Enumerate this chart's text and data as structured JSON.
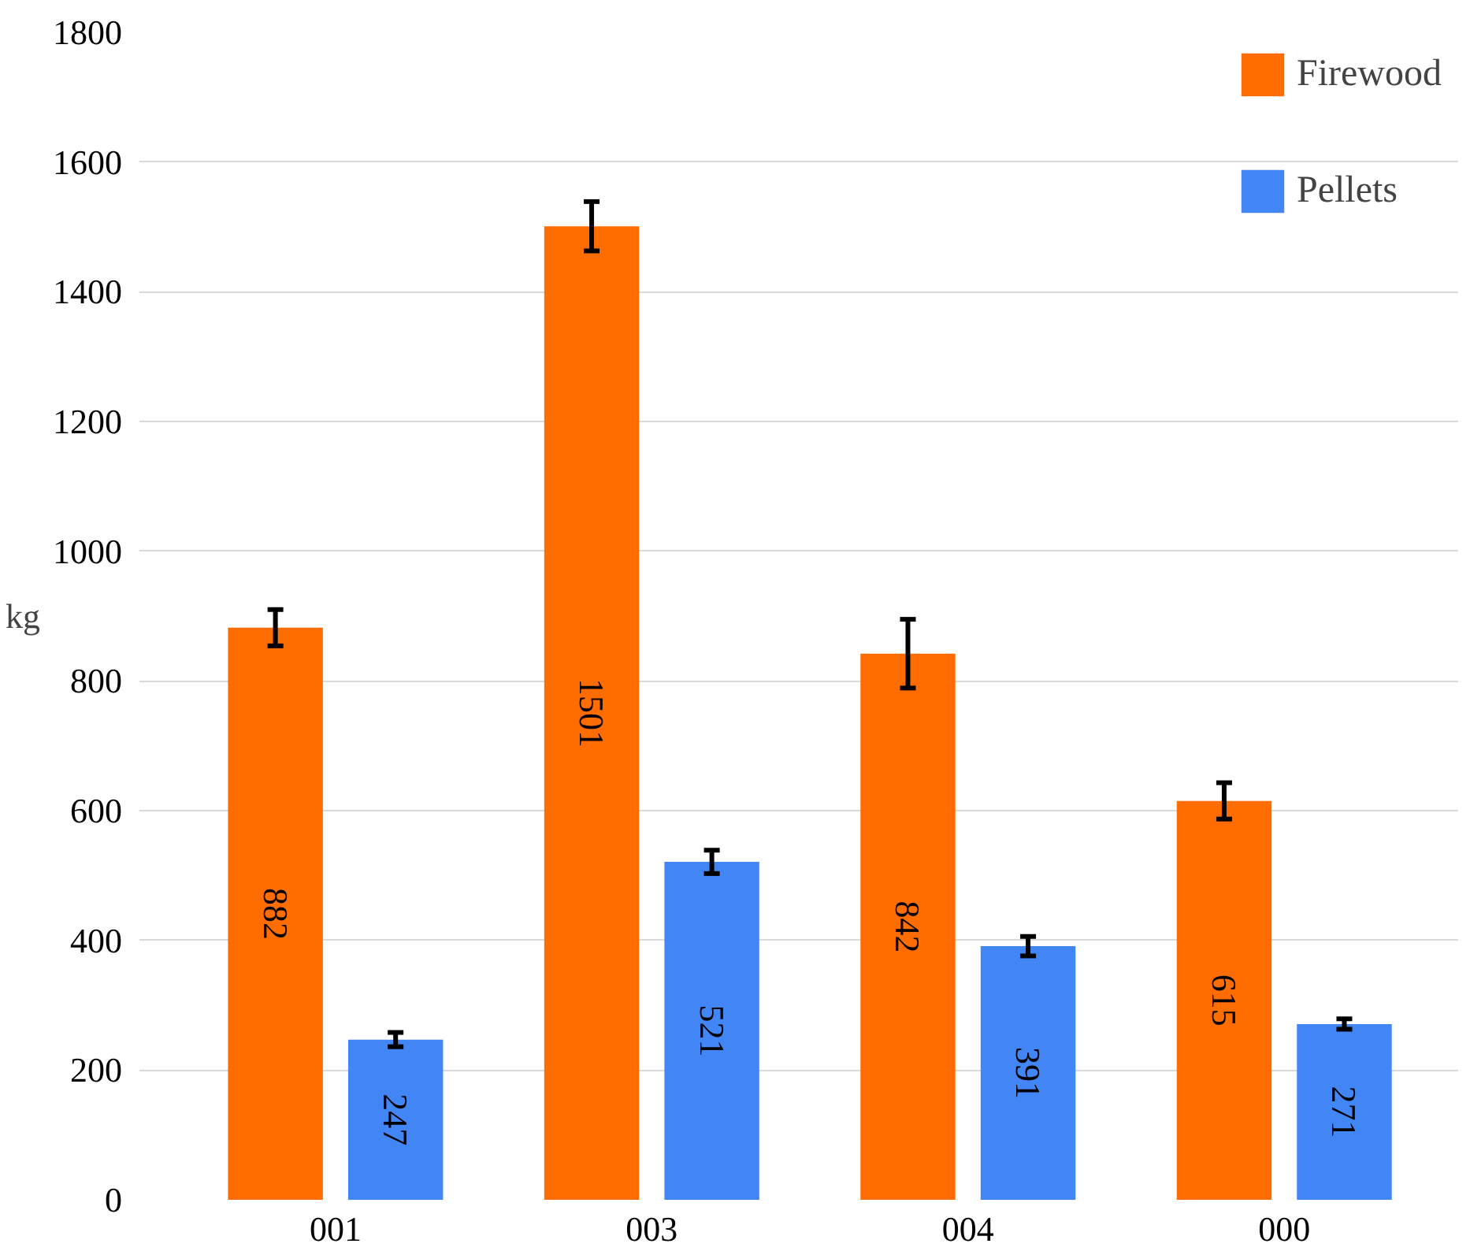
{
  "chart_data": {
    "type": "bar",
    "ylabel": "kg",
    "categories": [
      "001",
      "003",
      "004",
      "000"
    ],
    "series": [
      {
        "name": "Firewood",
        "color": "#ff6d01",
        "values": [
          882,
          1501,
          842,
          615
        ],
        "errors": [
          28,
          38,
          53,
          28
        ]
      },
      {
        "name": "Pellets",
        "color": "#4285f4",
        "values": [
          247,
          521,
          391,
          271
        ],
        "errors": [
          11,
          18,
          15,
          8
        ]
      }
    ],
    "ylim": [
      0,
      1800
    ],
    "yticks": [
      0,
      200,
      400,
      600,
      800,
      1000,
      1200,
      1400,
      1600,
      1800
    ],
    "grid": "y",
    "legend": "top right",
    "data_labels": true
  }
}
